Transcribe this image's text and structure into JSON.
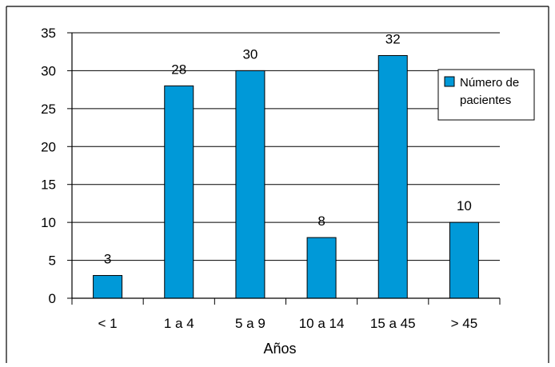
{
  "chart_data": {
    "type": "bar",
    "title": "",
    "xlabel": "Años",
    "ylabel": "",
    "categories": [
      "< 1",
      "1 a 4",
      "5 a 9",
      "10 a 14",
      "15 a 45",
      "> 45"
    ],
    "series": [
      {
        "name": "Número de pacientes",
        "values": [
          3,
          28,
          30,
          8,
          32,
          10
        ]
      }
    ],
    "data_labels": [
      "3",
      "28",
      "30",
      "8",
      "32",
      "10"
    ],
    "yticks": [
      0,
      5,
      10,
      15,
      20,
      25,
      30,
      35
    ],
    "ylim": [
      0,
      35
    ],
    "grid": true,
    "legend_position": "right",
    "legend_lines": [
      "Número de",
      "pacientes"
    ],
    "bar_color": "#0099d8",
    "bar_edge_color": "#000000"
  }
}
